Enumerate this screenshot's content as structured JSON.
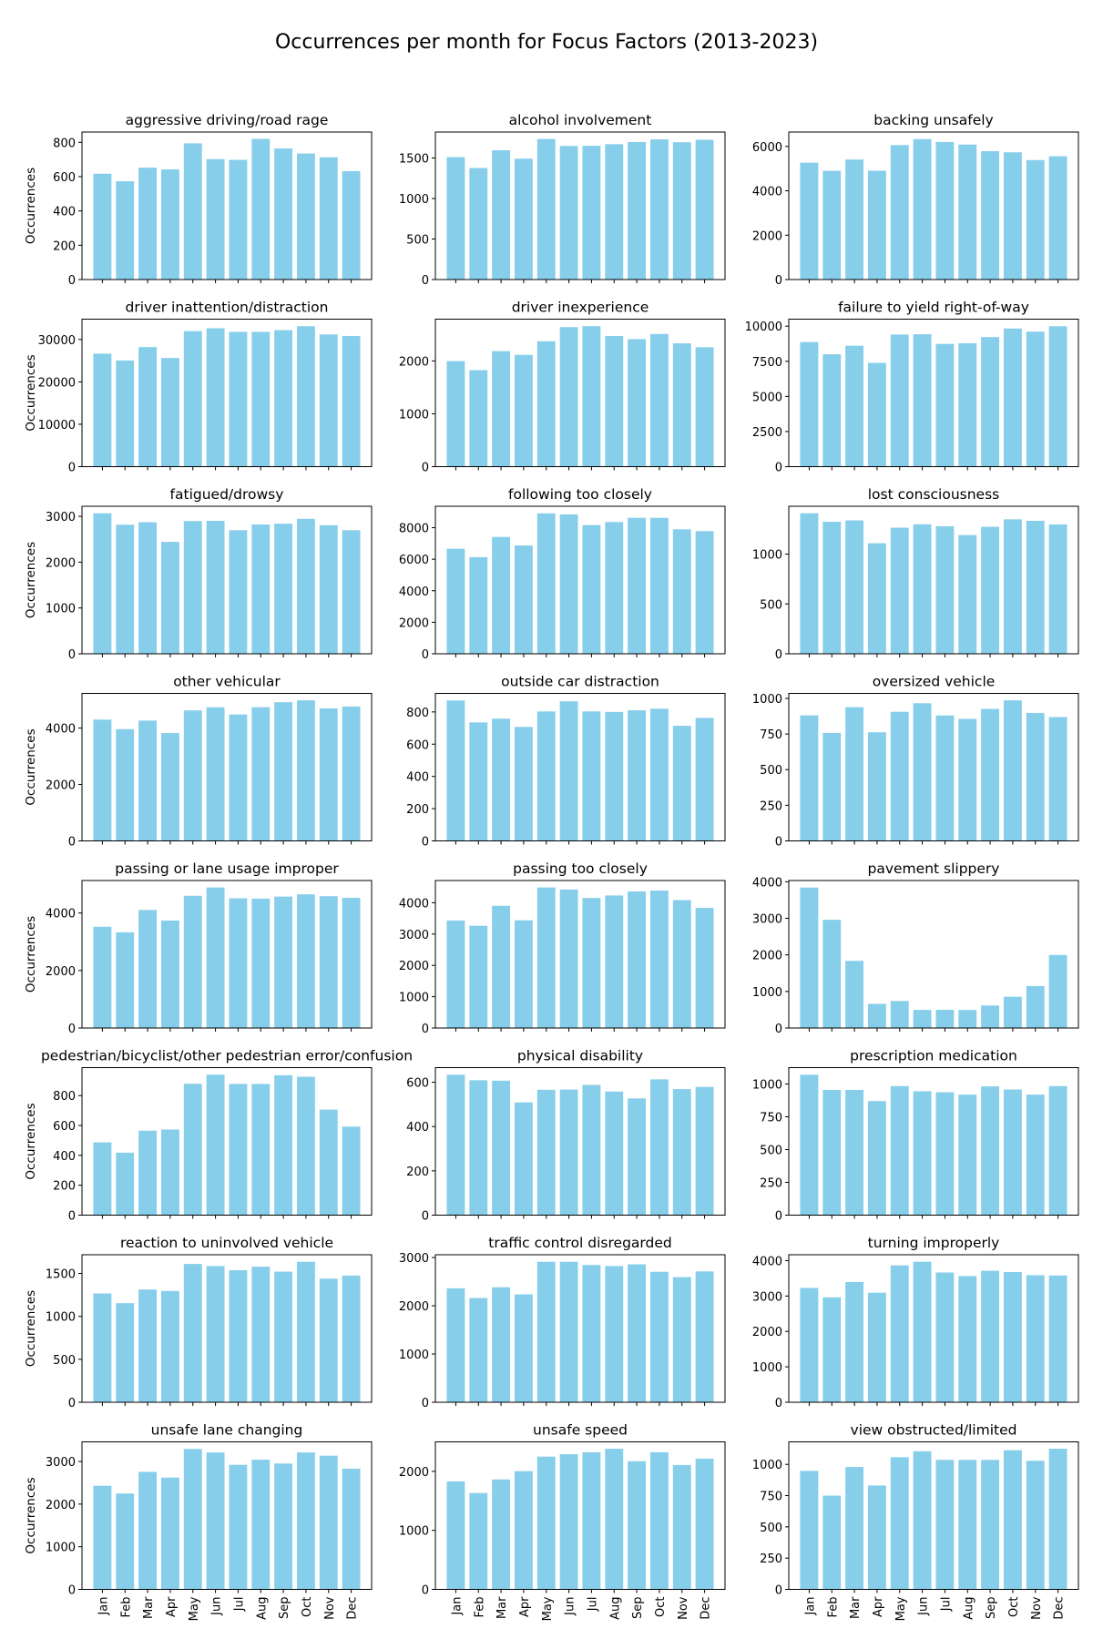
{
  "figure": {
    "title": "Occurrences per month for Focus Factors (2013-2023)",
    "bar_color": "#87ceeb",
    "ylabel": "Occurrences"
  },
  "chart_data": [
    {
      "type": "bar",
      "title": "aggressive driving/road rage",
      "ylabel": "Occurrences",
      "xlabel": "",
      "categories": [
        "Jan",
        "Feb",
        "Mar",
        "Apr",
        "May",
        "Jun",
        "Jul",
        "Aug",
        "Sep",
        "Oct",
        "Nov",
        "Dec"
      ],
      "values": [
        617,
        573,
        652,
        642,
        794,
        702,
        698,
        820,
        764,
        735,
        713,
        632
      ],
      "yticks": [
        0,
        200,
        400,
        600,
        800
      ],
      "ylim": [
        0,
        860
      ]
    },
    {
      "type": "bar",
      "title": "alcohol involvement",
      "ylabel": "",
      "xlabel": "",
      "categories": [
        "Jan",
        "Feb",
        "Mar",
        "Apr",
        "May",
        "Jun",
        "Jul",
        "Aug",
        "Sep",
        "Oct",
        "Nov",
        "Dec"
      ],
      "values": [
        1511,
        1376,
        1595,
        1491,
        1734,
        1648,
        1650,
        1670,
        1697,
        1729,
        1694,
        1724
      ],
      "yticks": [
        0,
        500,
        1000,
        1500
      ],
      "ylim": [
        0,
        1820
      ]
    },
    {
      "type": "bar",
      "title": "backing unsafely",
      "ylabel": "",
      "xlabel": "",
      "categories": [
        "Jan",
        "Feb",
        "Mar",
        "Apr",
        "May",
        "Jun",
        "Jul",
        "Aug",
        "Sep",
        "Oct",
        "Nov",
        "Dec"
      ],
      "values": [
        5270,
        4902,
        5410,
        4905,
        6059,
        6333,
        6201,
        6086,
        5787,
        5737,
        5386,
        5557
      ],
      "yticks": [
        0,
        2000,
        4000,
        6000
      ],
      "ylim": [
        0,
        6650
      ]
    },
    {
      "type": "bar",
      "title": "driver inattention/distraction",
      "ylabel": "Occurrences",
      "xlabel": "",
      "categories": [
        "Jan",
        "Feb",
        "Mar",
        "Apr",
        "May",
        "Jun",
        "Jul",
        "Aug",
        "Sep",
        "Oct",
        "Nov",
        "Dec"
      ],
      "values": [
        26654,
        25053,
        28212,
        25640,
        31981,
        32655,
        31815,
        31811,
        32209,
        33138,
        31201,
        30816
      ],
      "yticks": [
        0,
        10000,
        20000,
        30000
      ],
      "ylim": [
        0,
        34800
      ]
    },
    {
      "type": "bar",
      "title": "driver inexperience",
      "ylabel": "",
      "xlabel": "",
      "categories": [
        "Jan",
        "Feb",
        "Mar",
        "Apr",
        "May",
        "Jun",
        "Jul",
        "Aug",
        "Sep",
        "Oct",
        "Nov",
        "Dec"
      ],
      "values": [
        1997,
        1825,
        2185,
        2114,
        2372,
        2640,
        2658,
        2472,
        2412,
        2510,
        2332,
        2258
      ],
      "yticks": [
        0,
        1000,
        2000
      ],
      "ylim": [
        0,
        2790
      ]
    },
    {
      "type": "bar",
      "title": "failure to yield right-of-way",
      "ylabel": "",
      "xlabel": "",
      "categories": [
        "Jan",
        "Feb",
        "Mar",
        "Apr",
        "May",
        "Jun",
        "Jul",
        "Aug",
        "Sep",
        "Oct",
        "Nov",
        "Dec"
      ],
      "values": [
        8868,
        8000,
        8610,
        7388,
        9405,
        9424,
        8738,
        8784,
        9223,
        9833,
        9611,
        9994
      ],
      "yticks": [
        0,
        2500,
        5000,
        7500,
        10000
      ],
      "ylim": [
        0,
        10500
      ]
    },
    {
      "type": "bar",
      "title": "fatigued/drowsy",
      "ylabel": "Occurrences",
      "xlabel": "",
      "categories": [
        "Jan",
        "Feb",
        "Mar",
        "Apr",
        "May",
        "Jun",
        "Jul",
        "Aug",
        "Sep",
        "Oct",
        "Nov",
        "Dec"
      ],
      "values": [
        3067,
        2817,
        2872,
        2443,
        2898,
        2902,
        2697,
        2822,
        2840,
        2946,
        2806,
        2697
      ],
      "yticks": [
        0,
        1000,
        2000,
        3000
      ],
      "ylim": [
        0,
        3220
      ]
    },
    {
      "type": "bar",
      "title": "following too closely",
      "ylabel": "",
      "xlabel": "",
      "categories": [
        "Jan",
        "Feb",
        "Mar",
        "Apr",
        "May",
        "Jun",
        "Jul",
        "Aug",
        "Sep",
        "Oct",
        "Nov",
        "Dec"
      ],
      "values": [
        6666,
        6132,
        7413,
        6872,
        8913,
        8843,
        8167,
        8361,
        8627,
        8624,
        7899,
        7780
      ],
      "yticks": [
        0,
        2000,
        4000,
        6000,
        8000
      ],
      "ylim": [
        0,
        9360
      ]
    },
    {
      "type": "bar",
      "title": "lost consciousness",
      "ylabel": "",
      "xlabel": "",
      "categories": [
        "Jan",
        "Feb",
        "Mar",
        "Apr",
        "May",
        "Jun",
        "Jul",
        "Aug",
        "Sep",
        "Oct",
        "Nov",
        "Dec"
      ],
      "values": [
        1410,
        1324,
        1338,
        1109,
        1265,
        1299,
        1279,
        1191,
        1274,
        1349,
        1334,
        1298
      ],
      "yticks": [
        0,
        500,
        1000
      ],
      "ylim": [
        0,
        1480
      ]
    },
    {
      "type": "bar",
      "title": "other vehicular",
      "ylabel": "Occurrences",
      "xlabel": "",
      "categories": [
        "Jan",
        "Feb",
        "Mar",
        "Apr",
        "May",
        "Jun",
        "Jul",
        "Aug",
        "Sep",
        "Oct",
        "Nov",
        "Dec"
      ],
      "values": [
        4302,
        3962,
        4265,
        3824,
        4628,
        4736,
        4482,
        4739,
        4917,
        4983,
        4700,
        4765
      ],
      "yticks": [
        0,
        2000,
        4000
      ],
      "ylim": [
        0,
        5230
      ]
    },
    {
      "type": "bar",
      "title": "outside car distraction",
      "ylabel": "",
      "xlabel": "",
      "categories": [
        "Jan",
        "Feb",
        "Mar",
        "Apr",
        "May",
        "Jun",
        "Jul",
        "Aug",
        "Sep",
        "Oct",
        "Nov",
        "Dec"
      ],
      "values": [
        871,
        735,
        758,
        707,
        803,
        866,
        803,
        800,
        810,
        820,
        714,
        763
      ],
      "yticks": [
        0,
        200,
        400,
        600,
        800
      ],
      "ylim": [
        0,
        915
      ]
    },
    {
      "type": "bar",
      "title": "oversized vehicle",
      "ylabel": "",
      "xlabel": "",
      "categories": [
        "Jan",
        "Feb",
        "Mar",
        "Apr",
        "May",
        "Jun",
        "Jul",
        "Aug",
        "Sep",
        "Oct",
        "Nov",
        "Dec"
      ],
      "values": [
        881,
        758,
        938,
        762,
        906,
        966,
        880,
        856,
        926,
        986,
        898,
        869
      ],
      "yticks": [
        0,
        250,
        500,
        750,
        1000
      ],
      "ylim": [
        0,
        1035
      ]
    },
    {
      "type": "bar",
      "title": "passing or lane usage improper",
      "ylabel": "Occurrences",
      "xlabel": "",
      "categories": [
        "Jan",
        "Feb",
        "Mar",
        "Apr",
        "May",
        "Jun",
        "Jul",
        "Aug",
        "Sep",
        "Oct",
        "Nov",
        "Dec"
      ],
      "values": [
        3522,
        3328,
        4105,
        3737,
        4599,
        4887,
        4511,
        4499,
        4571,
        4648,
        4585,
        4527
      ],
      "yticks": [
        0,
        2000,
        4000
      ],
      "ylim": [
        0,
        5130
      ]
    },
    {
      "type": "bar",
      "title": "passing too closely",
      "ylabel": "",
      "xlabel": "",
      "categories": [
        "Jan",
        "Feb",
        "Mar",
        "Apr",
        "May",
        "Jun",
        "Jul",
        "Aug",
        "Sep",
        "Oct",
        "Nov",
        "Dec"
      ],
      "values": [
        3432,
        3265,
        3903,
        3440,
        4488,
        4422,
        4152,
        4233,
        4362,
        4389,
        4084,
        3835
      ],
      "yticks": [
        0,
        1000,
        2000,
        3000,
        4000
      ],
      "ylim": [
        0,
        4710
      ]
    },
    {
      "type": "bar",
      "title": "pavement slippery",
      "ylabel": "",
      "xlabel": "",
      "categories": [
        "Jan",
        "Feb",
        "Mar",
        "Apr",
        "May",
        "Jun",
        "Jul",
        "Aug",
        "Sep",
        "Oct",
        "Nov",
        "Dec"
      ],
      "values": [
        3843,
        2961,
        1837,
        661,
        739,
        495,
        498,
        493,
        616,
        856,
        1148,
        1998
      ],
      "yticks": [
        0,
        1000,
        2000,
        3000,
        4000
      ],
      "ylim": [
        0,
        4035
      ]
    },
    {
      "type": "bar",
      "title": "pedestrian/bicyclist/other pedestrian error/confusion",
      "ylabel": "Occurrences",
      "xlabel": "",
      "categories": [
        "Jan",
        "Feb",
        "Mar",
        "Apr",
        "May",
        "Jun",
        "Jul",
        "Aug",
        "Sep",
        "Oct",
        "Nov",
        "Dec"
      ],
      "values": [
        487,
        418,
        565,
        573,
        879,
        940,
        878,
        878,
        936,
        926,
        706,
        592
      ],
      "yticks": [
        0,
        200,
        400,
        600,
        800
      ],
      "ylim": [
        0,
        987
      ]
    },
    {
      "type": "bar",
      "title": "physical disability",
      "ylabel": "",
      "xlabel": "",
      "categories": [
        "Jan",
        "Feb",
        "Mar",
        "Apr",
        "May",
        "Jun",
        "Jul",
        "Aug",
        "Sep",
        "Oct",
        "Nov",
        "Dec"
      ],
      "values": [
        634,
        609,
        607,
        509,
        566,
        567,
        588,
        558,
        527,
        613,
        569,
        579
      ],
      "yticks": [
        0,
        200,
        400,
        600
      ],
      "ylim": [
        0,
        666
      ]
    },
    {
      "type": "bar",
      "title": "prescription medication",
      "ylabel": "",
      "xlabel": "",
      "categories": [
        "Jan",
        "Feb",
        "Mar",
        "Apr",
        "May",
        "Jun",
        "Jul",
        "Aug",
        "Sep",
        "Oct",
        "Nov",
        "Dec"
      ],
      "values": [
        1071,
        955,
        955,
        870,
        984,
        945,
        937,
        919,
        982,
        958,
        919,
        984
      ],
      "yticks": [
        0,
        250,
        500,
        750,
        1000
      ],
      "ylim": [
        0,
        1125
      ]
    },
    {
      "type": "bar",
      "title": "reaction to uninvolved vehicle",
      "ylabel": "Occurrences",
      "xlabel": "",
      "categories": [
        "Jan",
        "Feb",
        "Mar",
        "Apr",
        "May",
        "Jun",
        "Jul",
        "Aug",
        "Sep",
        "Oct",
        "Nov",
        "Dec"
      ],
      "values": [
        1267,
        1154,
        1313,
        1296,
        1611,
        1586,
        1538,
        1579,
        1521,
        1636,
        1439,
        1475
      ],
      "yticks": [
        0,
        500,
        1000,
        1500
      ],
      "ylim": [
        0,
        1718
      ]
    },
    {
      "type": "bar",
      "title": "traffic control disregarded",
      "ylabel": "",
      "xlabel": "",
      "categories": [
        "Jan",
        "Feb",
        "Mar",
        "Apr",
        "May",
        "Jun",
        "Jul",
        "Aug",
        "Sep",
        "Oct",
        "Nov",
        "Dec"
      ],
      "values": [
        2362,
        2161,
        2384,
        2237,
        2912,
        2912,
        2845,
        2824,
        2860,
        2704,
        2595,
        2712
      ],
      "yticks": [
        0,
        1000,
        2000,
        3000
      ],
      "ylim": [
        0,
        3058
      ]
    },
    {
      "type": "bar",
      "title": "turning improperly",
      "ylabel": "",
      "xlabel": "",
      "categories": [
        "Jan",
        "Feb",
        "Mar",
        "Apr",
        "May",
        "Jun",
        "Jul",
        "Aug",
        "Sep",
        "Oct",
        "Nov",
        "Dec"
      ],
      "values": [
        3228,
        2963,
        3394,
        3093,
        3865,
        3967,
        3664,
        3562,
        3713,
        3677,
        3587,
        3579
      ],
      "yticks": [
        0,
        1000,
        2000,
        3000,
        4000
      ],
      "ylim": [
        0,
        4165
      ]
    },
    {
      "type": "bar",
      "title": "unsafe lane changing",
      "ylabel": "Occurrences",
      "xlabel": "",
      "categories": [
        "Jan",
        "Feb",
        "Mar",
        "Apr",
        "May",
        "Jun",
        "Jul",
        "Aug",
        "Sep",
        "Oct",
        "Nov",
        "Dec"
      ],
      "values": [
        2431,
        2248,
        2757,
        2622,
        3294,
        3212,
        2922,
        3042,
        2952,
        3212,
        3136,
        2830
      ],
      "yticks": [
        0,
        1000,
        2000,
        3000
      ],
      "ylim": [
        0,
        3460
      ]
    },
    {
      "type": "bar",
      "title": "unsafe speed",
      "ylabel": "",
      "xlabel": "",
      "categories": [
        "Jan",
        "Feb",
        "Mar",
        "Apr",
        "May",
        "Jun",
        "Jul",
        "Aug",
        "Sep",
        "Oct",
        "Nov",
        "Dec"
      ],
      "values": [
        1830,
        1633,
        1863,
        2004,
        2250,
        2291,
        2323,
        2383,
        2172,
        2324,
        2108,
        2216
      ],
      "yticks": [
        0,
        1000,
        2000
      ],
      "ylim": [
        0,
        2500
      ]
    },
    {
      "type": "bar",
      "title": "view obstructed/limited",
      "ylabel": "",
      "xlabel": "",
      "categories": [
        "Jan",
        "Feb",
        "Mar",
        "Apr",
        "May",
        "Jun",
        "Jul",
        "Aug",
        "Sep",
        "Oct",
        "Nov",
        "Dec"
      ],
      "values": [
        948,
        750,
        979,
        831,
        1057,
        1105,
        1036,
        1036,
        1036,
        1113,
        1029,
        1125
      ],
      "yticks": [
        0,
        250,
        500,
        750,
        1000
      ],
      "ylim": [
        0,
        1180
      ]
    }
  ]
}
